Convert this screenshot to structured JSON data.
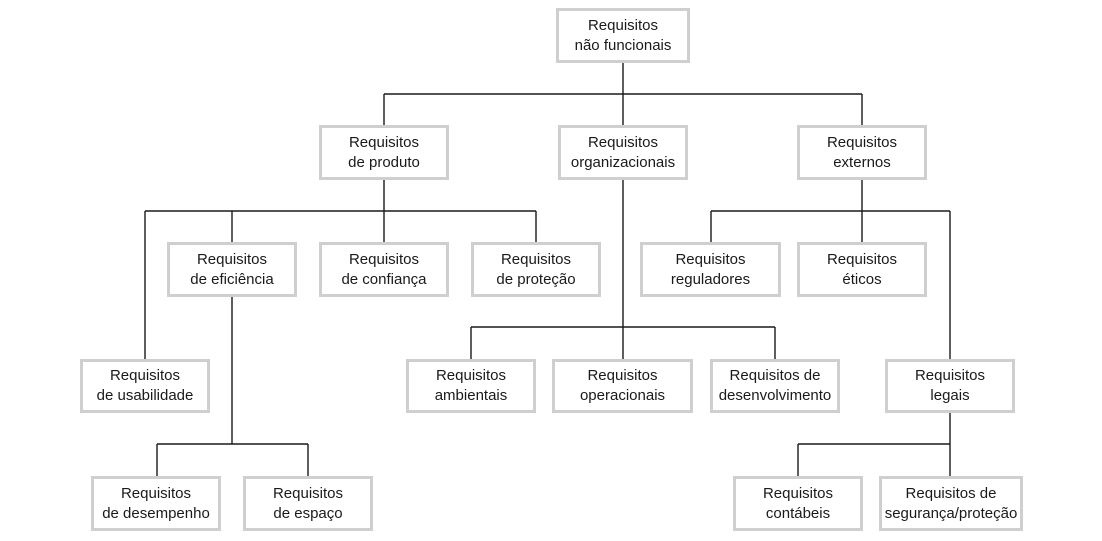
{
  "nodes": {
    "nonfunctional": {
      "line1": "Requisitos",
      "line2": "não funcionais"
    },
    "product": {
      "line1": "Requisitos",
      "line2": "de produto"
    },
    "organizational": {
      "line1": "Requisitos",
      "line2": "organizacionais"
    },
    "external": {
      "line1": "Requisitos",
      "line2": "externos"
    },
    "efficiency": {
      "line1": "Requisitos",
      "line2": "de eficiência"
    },
    "dependability": {
      "line1": "Requisitos",
      "line2": "de confiança"
    },
    "security": {
      "line1": "Requisitos",
      "line2": "de proteção"
    },
    "regulatory": {
      "line1": "Requisitos",
      "line2": "reguladores"
    },
    "ethical": {
      "line1": "Requisitos",
      "line2": "éticos"
    },
    "usability": {
      "line1": "Requisitos",
      "line2": "de usabilidade"
    },
    "environmental": {
      "line1": "Requisitos",
      "line2": "ambientais"
    },
    "operational": {
      "line1": "Requisitos",
      "line2": "operacionais"
    },
    "development": {
      "line1": "Requisitos de",
      "line2": "desenvolvimento"
    },
    "legislative": {
      "line1": "Requisitos",
      "line2": "legais"
    },
    "performance": {
      "line1": "Requisitos",
      "line2": "de desempenho"
    },
    "space": {
      "line1": "Requisitos",
      "line2": "de espaço"
    },
    "accounting": {
      "line1": "Requisitos",
      "line2": "contábeis"
    },
    "safety": {
      "line1": "Requisitos de",
      "line2": "segurança/proteção"
    }
  }
}
